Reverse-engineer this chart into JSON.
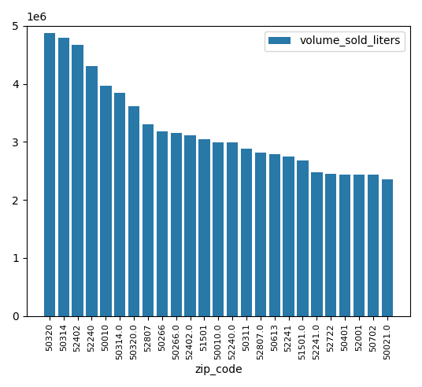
{
  "zip_codes": [
    "50320",
    "50314",
    "52402",
    "52240",
    "50010",
    "50314.0",
    "50320.0",
    "52807",
    "50266",
    "50266.0",
    "52402.0",
    "51501",
    "50010.0",
    "52240.0",
    "50311",
    "52807.0",
    "50613",
    "52241",
    "51501.0",
    "52241.0",
    "52722",
    "50401",
    "52001",
    "50702",
    "50021.0"
  ],
  "values": [
    4880000,
    4790000,
    4670000,
    4310000,
    3960000,
    3840000,
    3620000,
    3300000,
    3180000,
    3150000,
    3110000,
    3040000,
    2990000,
    2990000,
    2880000,
    2820000,
    2790000,
    2750000,
    2680000,
    2480000,
    2450000,
    2440000,
    2440000,
    2440000,
    2360000
  ],
  "bar_color": "#2878a8",
  "xlabel": "zip_code",
  "legend_label": "volume_sold_liters",
  "ylim": [
    0,
    5000000
  ]
}
